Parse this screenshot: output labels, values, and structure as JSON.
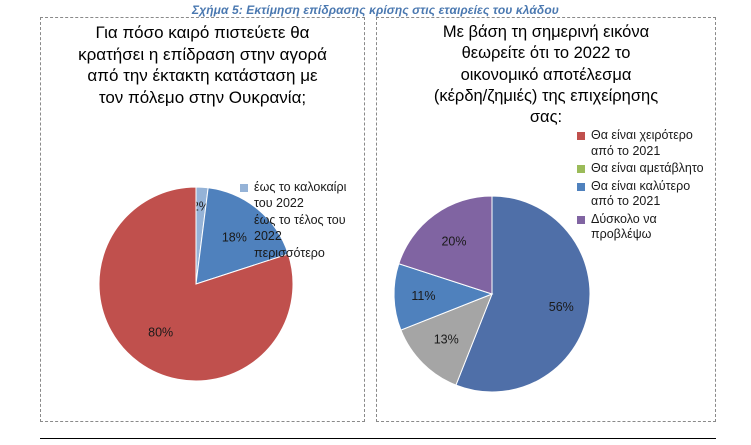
{
  "figure": {
    "caption": "Σχήμα 5: Εκτίμηση επίδρασης κρίσης στις εταιρείες του κλάδου"
  },
  "chart_data": [
    {
      "type": "pie",
      "title": "Για πόσο καιρό πιστεύετε θα\nκρατήσει η επίδραση στην αγορά\nαπό την έκτακτη κατάσταση με\nτον πόλεμο στην Ουκρανία;",
      "slices": [
        {
          "label": "έως το καλοκαίρι του 2022",
          "value": 2,
          "value_label": "2%",
          "color": "#95b3d7"
        },
        {
          "label": "έως το τέλος του 2022",
          "value": 18,
          "value_label": "18%",
          "color": "#4f81bd"
        },
        {
          "label": "περισσότερο",
          "value": 80,
          "value_label": "80%",
          "color": "#c0504d"
        }
      ],
      "legend_position": "right"
    },
    {
      "type": "pie",
      "title": "Με βάση τη σημερινή εικόνα\nθεωρείτε ότι το 2022 το\nοικονομικό αποτέλεσμα\n(κέρδη/ζημιές) της επιχείρησης\nσας:",
      "slices": [
        {
          "label": "Θα είναι χειρότερο από το 2021",
          "value": 56,
          "value_label": "56%",
          "color": "#4f6fa8"
        },
        {
          "label": "Θα είναι αμετάβλητο",
          "value": 13,
          "value_label": "13%",
          "color": "#a5a5a5"
        },
        {
          "label": "Θα είναι καλύτερο από το 2021",
          "value": 11,
          "value_label": "11%",
          "color": "#4f81bd"
        },
        {
          "label": "Δύσκολο να προβλέψω",
          "value": 20,
          "value_label": "20%",
          "color": "#8064a2"
        }
      ],
      "legend_position": "right",
      "legend_markers": [
        {
          "label": "Θα είναι χειρότερο από το 2021",
          "color": "#c0504d"
        },
        {
          "label": "Θα είναι αμετάβλητο",
          "color": "#9bbb59"
        },
        {
          "label": "Θα είναι καλύτερο από το 2021",
          "color": "#4f81bd"
        },
        {
          "label": "Δύσκολο να προβλέψω",
          "color": "#8064a2"
        }
      ]
    }
  ]
}
